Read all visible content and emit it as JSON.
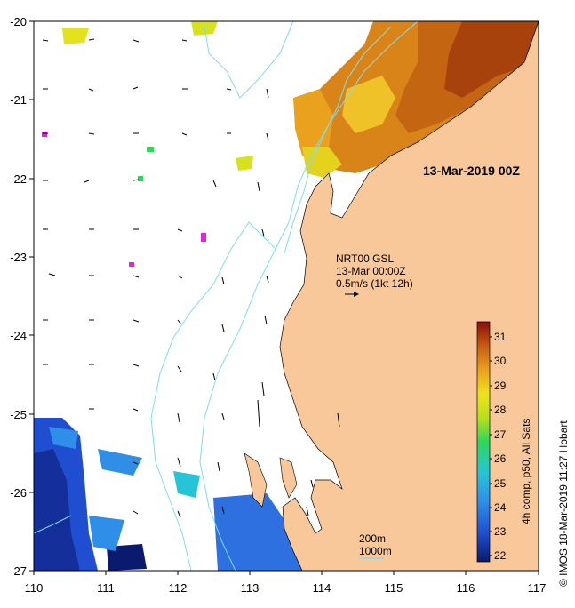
{
  "map": {
    "date_label": "13-Mar-2019 00Z",
    "lon_ticks": [
      "110",
      "111",
      "112",
      "113",
      "114",
      "115",
      "116",
      "117"
    ],
    "lat_ticks": [
      "-20",
      "-21",
      "-22",
      "-23",
      "-24",
      "-25",
      "-26",
      "-27"
    ],
    "lon_range": [
      110,
      117
    ],
    "lat_range": [
      -27,
      -20
    ],
    "colors": {
      "land": "#f8c89a",
      "ocean": "#ffffff",
      "isobath": "#7fdcf0",
      "vector": "#000000"
    }
  },
  "legend": {
    "line1": "NRT00 GSL",
    "line2": "13-Mar 00:00Z",
    "line3": "0.5m/s (1kt 12h)"
  },
  "isobaths": {
    "line1": "200m",
    "line2": "1000m"
  },
  "colorbar": {
    "title": "4h comp, p50, All Sats",
    "ticks": [
      "22",
      "23",
      "24",
      "25",
      "26",
      "27",
      "28",
      "29",
      "30",
      "31"
    ]
  },
  "credit": "© IMOS 18-Mar-2019 11:27 Hobart"
}
